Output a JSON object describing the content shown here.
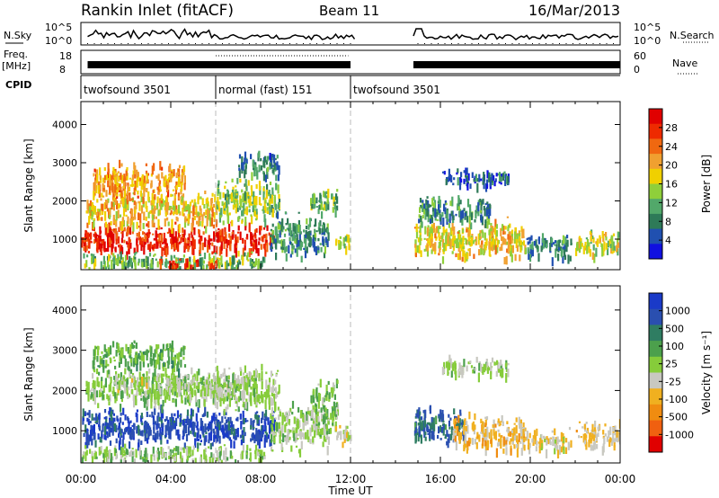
{
  "header": {
    "station": "Rankin Inlet (fitACF)",
    "beam": "Beam 11",
    "date": "16/Mar/2013"
  },
  "top_panels": {
    "nsky_label": "N.Sky",
    "nsearch_label": "N.Search",
    "nsky_ticks": [
      "10^5",
      "10^0"
    ],
    "nsearch_ticks": [
      "10^5",
      "10^0"
    ],
    "freq_label": "Freq.",
    "freq_unit": "[MHz]",
    "freq_ticks": [
      "18",
      "8"
    ],
    "nave_label": "Nave",
    "nave_ticks": [
      "60",
      "0"
    ],
    "cpid_label": "CPID",
    "cpid_segments": [
      {
        "label": "twofsound 3501",
        "start": 0,
        "end": 6
      },
      {
        "label": "normal (fast) 151",
        "start": 6,
        "end": 12
      },
      {
        "label": "twofsound 3501",
        "start": 12,
        "end": 24
      }
    ]
  },
  "xaxis": {
    "label": "Time UT",
    "ticks": [
      "00:00",
      "04:00",
      "08:00",
      "12:00",
      "16:00",
      "20:00",
      "00:00"
    ]
  },
  "colors": {
    "power_scale": [
      "#1010e0",
      "#2050b0",
      "#2e7a58",
      "#52a86a",
      "#8fcf3a",
      "#f0d000",
      "#f0a030",
      "#f06810",
      "#ee2a00",
      "#e00000"
    ],
    "velocity_scale": [
      "#1a3ac8",
      "#2a4fb0",
      "#2f7d62",
      "#4ca04c",
      "#86cc3a",
      "#c8c8c0",
      "#f0b020",
      "#f08c10",
      "#f06010",
      "#e00000"
    ]
  },
  "chart_data": [
    {
      "type": "heatmap",
      "name": "power",
      "ylabel": "Slant Range [km]",
      "yticks": [
        "1000",
        "2000",
        "3000",
        "4000"
      ],
      "ylim": [
        200,
        4600
      ],
      "xlim": [
        0,
        24
      ],
      "colorbar_label": "Power [dB]",
      "colorbar_ticks": [
        "4",
        "8",
        "12",
        "16",
        "20",
        "24",
        "28"
      ],
      "clim": [
        0,
        32
      ],
      "blobs": [
        {
          "t0": 0.0,
          "t1": 8.6,
          "r0": 650,
          "r1": 1500,
          "v": 28
        },
        {
          "t0": 0.2,
          "t1": 6.0,
          "r0": 1300,
          "r1": 2300,
          "v": 19
        },
        {
          "t0": 0.5,
          "t1": 4.6,
          "r0": 2000,
          "r1": 3100,
          "v": 21
        },
        {
          "t0": 0.0,
          "t1": 8.2,
          "r0": 250,
          "r1": 700,
          "v": 12
        },
        {
          "t0": 3.4,
          "t1": 6.0,
          "r0": 250,
          "r1": 520,
          "v": 27
        },
        {
          "t0": 6.0,
          "t1": 8.8,
          "r0": 1400,
          "r1": 2700,
          "v": 14
        },
        {
          "t0": 7.0,
          "t1": 8.8,
          "r0": 2600,
          "r1": 3400,
          "v": 8
        },
        {
          "t0": 8.4,
          "t1": 11.0,
          "r0": 500,
          "r1": 1800,
          "v": 9
        },
        {
          "t0": 10.2,
          "t1": 11.4,
          "r0": 1700,
          "r1": 2400,
          "v": 12
        },
        {
          "t0": 11.3,
          "t1": 12.0,
          "r0": 700,
          "r1": 1200,
          "v": 14
        },
        {
          "t0": 14.8,
          "t1": 19.8,
          "r0": 500,
          "r1": 1600,
          "v": 18
        },
        {
          "t0": 15.0,
          "t1": 18.2,
          "r0": 1400,
          "r1": 2200,
          "v": 9
        },
        {
          "t0": 19.8,
          "t1": 21.8,
          "r0": 500,
          "r1": 1200,
          "v": 8
        },
        {
          "t0": 22.0,
          "t1": 24.0,
          "r0": 600,
          "r1": 1300,
          "v": 16
        },
        {
          "t0": 16.0,
          "t1": 19.0,
          "r0": 2400,
          "r1": 2900,
          "v": 6
        }
      ]
    },
    {
      "type": "heatmap",
      "name": "velocity",
      "ylabel": "Slant Range [km]",
      "yticks": [
        "1000",
        "2000",
        "3000",
        "4000"
      ],
      "ylim": [
        200,
        4600
      ],
      "xlim": [
        0,
        24
      ],
      "colorbar_label": "Velocity [m s⁻¹]",
      "colorbar_ticks": [
        "1000",
        "500",
        "100",
        "25",
        "-25",
        "-100",
        "-500",
        "-1000"
      ],
      "clim": [
        -1200,
        1200
      ],
      "blobs": [
        {
          "t0": 0.0,
          "t1": 8.6,
          "r0": 650,
          "r1": 1700,
          "v": 900
        },
        {
          "t0": 0.2,
          "t1": 6.0,
          "r0": 1600,
          "r1": 2600,
          "v": 150
        },
        {
          "t0": 1.5,
          "t1": 7.8,
          "r0": 2000,
          "r1": 2500,
          "v": 0
        },
        {
          "t0": 0.5,
          "t1": 4.6,
          "r0": 2500,
          "r1": 3300,
          "v": 300
        },
        {
          "t0": 0.0,
          "t1": 8.2,
          "r0": 250,
          "r1": 700,
          "v": 120
        },
        {
          "t0": 6.0,
          "t1": 8.8,
          "r0": 1500,
          "r1": 2700,
          "v": 60
        },
        {
          "t0": 8.4,
          "t1": 11.0,
          "r0": 500,
          "r1": 1800,
          "v": 40
        },
        {
          "t0": 10.2,
          "t1": 11.4,
          "r0": 1000,
          "r1": 2400,
          "v": 200
        },
        {
          "t0": 11.3,
          "t1": 12.0,
          "r0": 700,
          "r1": 1200,
          "v": -150
        },
        {
          "t0": 14.8,
          "t1": 17.0,
          "r0": 700,
          "r1": 1700,
          "v": 700
        },
        {
          "t0": 16.5,
          "t1": 19.8,
          "r0": 500,
          "r1": 1500,
          "v": -300
        },
        {
          "t0": 19.8,
          "t1": 21.8,
          "r0": 500,
          "r1": 1100,
          "v": -150
        },
        {
          "t0": 22.0,
          "t1": 24.0,
          "r0": 600,
          "r1": 1300,
          "v": -250
        },
        {
          "t0": 16.0,
          "t1": 19.0,
          "r0": 2400,
          "r1": 2900,
          "v": 60
        }
      ]
    }
  ]
}
